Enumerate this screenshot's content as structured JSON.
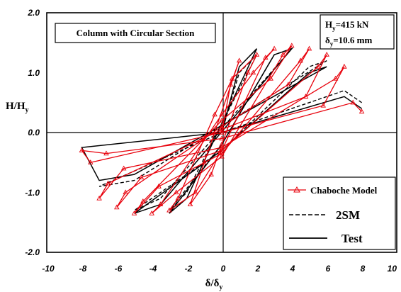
{
  "chart_data": {
    "type": "line",
    "title": "Column with Circular Section",
    "params": {
      "hy": "H",
      "hy_sub": "y",
      "hy_val": "=415 kN",
      "dy": "δ",
      "dy_sub": "y",
      "dy_val": "=10.6 mm"
    },
    "xlabel": {
      "main": "δ/δ",
      "sub": "y"
    },
    "ylabel": {
      "main": "H/H",
      "sub": "y"
    },
    "xlim": [
      -10,
      10
    ],
    "ylim": [
      -2.0,
      2.0
    ],
    "x_ticks": [
      "-10",
      "-8",
      "-6",
      "-4",
      "-2",
      "0",
      "2",
      "4",
      "6",
      "8",
      "10"
    ],
    "y_ticks": [
      "2.0",
      "1.0",
      "0.0",
      "-1.0",
      "-2.0"
    ],
    "legend_items": [
      "Chaboche Model",
      "2SM",
      "Test"
    ],
    "legend_position": "bottom-right",
    "colors": {
      "chaboche": "#e8000b",
      "test": "#000000",
      "twosm": "#000000"
    },
    "series": [
      {
        "name": "Chaboche Model",
        "style": "red-triangles",
        "x": [
          0,
          0.5,
          1.0,
          -1.0,
          -1.8,
          -0.6,
          0,
          1.5,
          2.0,
          0.6,
          -0.4,
          -2.5,
          -3.0,
          -1.5,
          0,
          2.5,
          3.0,
          1.8,
          0,
          -3.5,
          -4.0,
          -2.6,
          0,
          3.5,
          4.0,
          2.8,
          0,
          -4.5,
          -5.0,
          -3.6,
          0,
          4.5,
          5.0,
          3.8,
          0,
          -5.5,
          -6.0,
          -4.6,
          0,
          5.5,
          6.0,
          4.8,
          0,
          -6.5,
          -7.0,
          -5.6,
          0,
          6.5,
          7.0,
          5.8,
          0,
          -7.5,
          -8.0,
          -6.6,
          0,
          7.5,
          8.0
        ],
        "y": [
          0,
          0.8,
          1.2,
          -0.5,
          -1.2,
          -0.7,
          -0.2,
          1.0,
          1.3,
          0.9,
          0.3,
          -1.1,
          -1.3,
          -1.0,
          -0.3,
          1.25,
          1.4,
          1.0,
          0.3,
          -1.2,
          -1.35,
          -1.0,
          -0.4,
          1.3,
          1.45,
          0.9,
          0.2,
          -1.15,
          -1.35,
          -0.9,
          -0.35,
          1.2,
          1.4,
          0.8,
          0.1,
          -1.0,
          -1.25,
          -0.75,
          -0.3,
          1.1,
          1.3,
          0.6,
          0.05,
          -0.85,
          -1.1,
          -0.6,
          -0.25,
          0.9,
          1.1,
          0.45,
          0.0,
          -0.5,
          -0.3,
          -0.35,
          -0.1,
          0.5,
          0.35
        ]
      },
      {
        "name": "2SM",
        "style": "black-dashed",
        "x": [
          0,
          1.0,
          2.0,
          -2.0,
          -3.0,
          0,
          3.0,
          4.0,
          -3.5,
          -5.0,
          0,
          5.0,
          6.0,
          -5.0,
          -7.0,
          0,
          7.0,
          8.0
        ],
        "y": [
          0,
          1.0,
          1.3,
          -1.0,
          -1.3,
          -0.2,
          1.3,
          1.4,
          -1.1,
          -1.3,
          -0.3,
          1.1,
          1.2,
          -0.8,
          -0.9,
          0.0,
          0.7,
          0.5
        ]
      },
      {
        "name": "Test",
        "style": "black-solid",
        "x": [
          0,
          1.0,
          2.0,
          -2.0,
          -3.0,
          0,
          3.0,
          4.0,
          -3.5,
          -5.0,
          0,
          5.0,
          6.0,
          -5.0,
          -7.0,
          -8.0,
          0,
          7.0,
          8.0
        ],
        "y": [
          0,
          1.1,
          1.4,
          -1.1,
          -1.35,
          -0.2,
          1.3,
          1.4,
          -1.2,
          -1.35,
          -0.3,
          1.0,
          1.1,
          -0.7,
          -0.8,
          -0.25,
          0.0,
          0.6,
          0.4
        ]
      }
    ]
  }
}
